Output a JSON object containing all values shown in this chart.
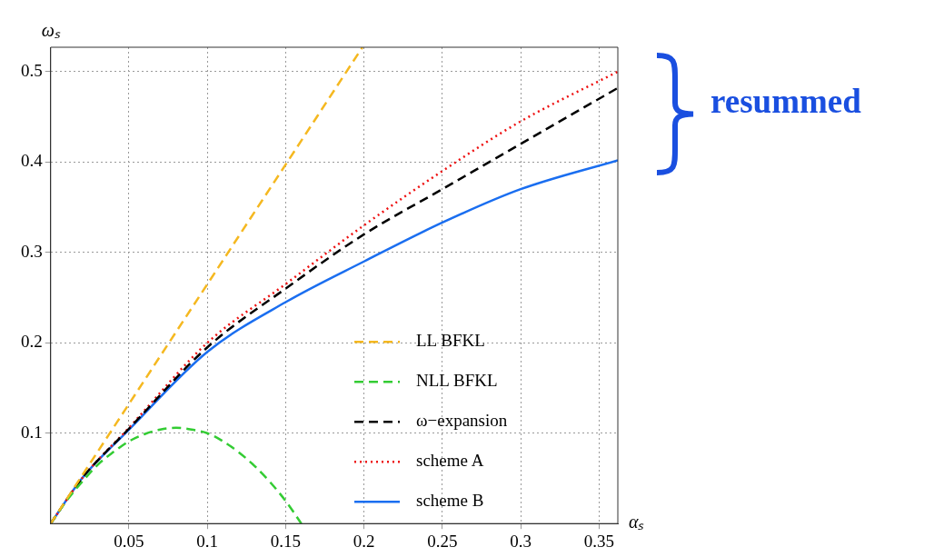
{
  "chart_data": {
    "type": "line",
    "xlabel": "αₛ",
    "ylabel": "ωₛ",
    "xlim": [
      0,
      0.362
    ],
    "ylim": [
      0,
      0.527
    ],
    "xticks": [
      0.05,
      0.1,
      0.15,
      0.2,
      0.25,
      0.3,
      0.35
    ],
    "yticks": [
      0.1,
      0.2,
      0.3,
      0.4,
      0.5
    ],
    "grid": true,
    "legend": "bottom right",
    "marker": "none",
    "annotations": [
      "resummed"
    ],
    "series": [
      {
        "name": "LL BFKL",
        "color": "#f5b820",
        "line_style": "dashed",
        "x": [
          0,
          0.199
        ],
        "values": [
          0,
          0.527
        ]
      },
      {
        "name": "NLL BFKL",
        "color": "#33cc33",
        "line_style": "dashed",
        "x": [
          0,
          0.01,
          0.02,
          0.03,
          0.04,
          0.05,
          0.06,
          0.07,
          0.08,
          0.09,
          0.1,
          0.11,
          0.12,
          0.13,
          0.14,
          0.15,
          0.16
        ],
        "values": [
          0,
          0.025,
          0.046,
          0.065,
          0.079,
          0.091,
          0.099,
          0.104,
          0.106,
          0.104,
          0.1,
          0.091,
          0.079,
          0.064,
          0.046,
          0.025,
          0
        ]
      },
      {
        "name": "ω−expansion",
        "color": "#000000",
        "line_style": "dashed",
        "x": [
          0,
          0.02,
          0.05,
          0.1,
          0.15,
          0.2,
          0.25,
          0.3,
          0.362
        ],
        "values": [
          0,
          0.05,
          0.105,
          0.195,
          0.26,
          0.32,
          0.37,
          0.42,
          0.482
        ]
      },
      {
        "name": "scheme A",
        "color": "#ee1111",
        "line_style": "dotted",
        "x": [
          0,
          0.02,
          0.05,
          0.1,
          0.15,
          0.2,
          0.25,
          0.3,
          0.362
        ],
        "values": [
          0,
          0.05,
          0.106,
          0.2,
          0.265,
          0.33,
          0.39,
          0.445,
          0.5
        ]
      },
      {
        "name": "scheme B",
        "color": "#1a6ef0",
        "line_style": "solid",
        "x": [
          0,
          0.02,
          0.05,
          0.1,
          0.15,
          0.2,
          0.25,
          0.3,
          0.362
        ],
        "values": [
          0,
          0.05,
          0.104,
          0.19,
          0.245,
          0.29,
          0.333,
          0.37,
          0.402
        ]
      }
    ]
  }
}
